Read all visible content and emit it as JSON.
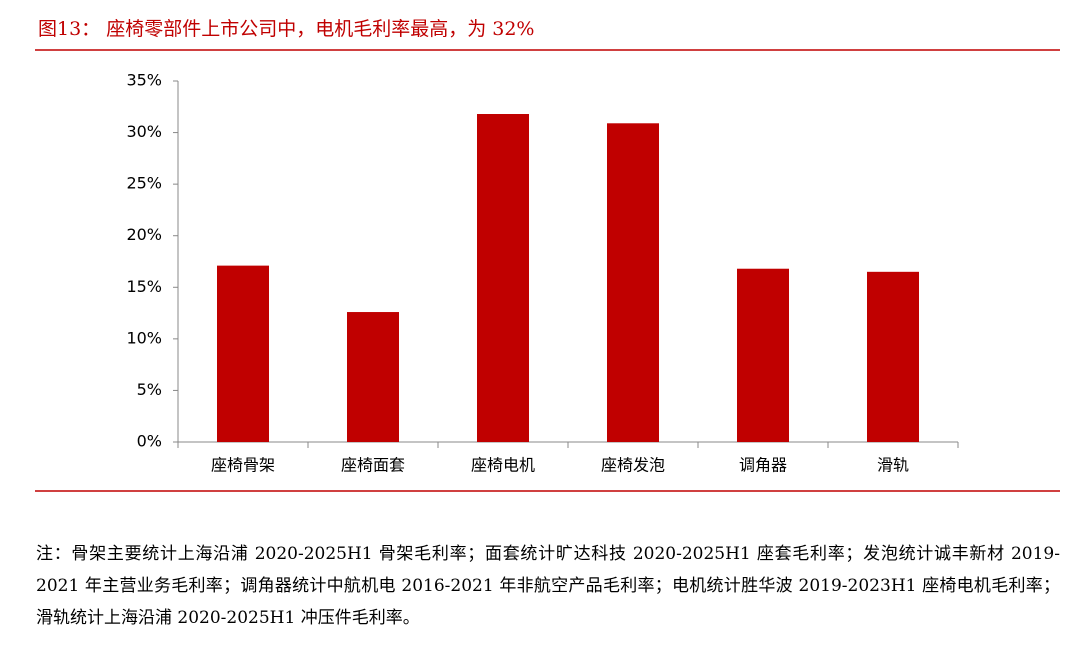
{
  "chart_data": {
    "type": "bar",
    "title": "图13：  座椅零部件上市公司中，电机毛利率最高，为 32%",
    "categories": [
      "座椅骨架",
      "座椅面套",
      "座椅电机",
      "座椅发泡",
      "调角器",
      "滑轨"
    ],
    "values": [
      17.1,
      12.6,
      31.8,
      30.9,
      16.8,
      16.5
    ],
    "color": "#c00000",
    "ylim": [
      0,
      35
    ],
    "yticks": [
      {
        "value": 0,
        "label": "0%"
      },
      {
        "value": 5,
        "label": "5%"
      },
      {
        "value": 10,
        "label": "10%"
      },
      {
        "value": 15,
        "label": "15%"
      },
      {
        "value": 20,
        "label": "20%"
      },
      {
        "value": 25,
        "label": "25%"
      },
      {
        "value": 30,
        "label": "30%"
      },
      {
        "value": 35,
        "label": "35%"
      }
    ],
    "grid": false
  },
  "note": "注：骨架主要统计上海沿浦 2020-2025H1 骨架毛利率；面套统计旷达科技 2020-2025H1 座套毛利率；发泡统计诚丰新材 2019-2021 年主营业务毛利率；调角器统计中航机电 2016-2021 年非航空产品毛利率；电机统计胜华波 2019-2023H1 座椅电机毛利率；滑轨统计上海沿浦 2020-2025H1 冲压件毛利率。"
}
